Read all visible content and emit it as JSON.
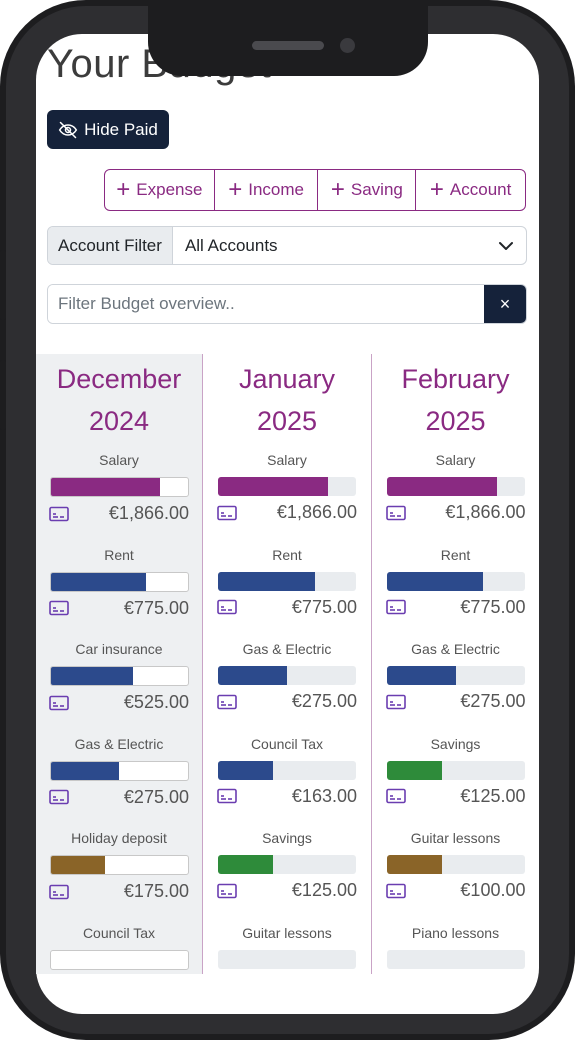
{
  "page": {
    "title": "Your Budget"
  },
  "toolbar": {
    "hide_paid_label": "Hide Paid",
    "hide_paid_icon": "eye-slash-icon"
  },
  "add_buttons": [
    {
      "label": "Expense",
      "icon": "plus-icon"
    },
    {
      "label": "Income",
      "icon": "plus-icon"
    },
    {
      "label": "Saving",
      "icon": "plus-icon"
    },
    {
      "label": "Account",
      "icon": "plus-icon"
    }
  ],
  "account_filter": {
    "label": "Account Filter",
    "selected": "All Accounts",
    "icon": "chevron-down-icon"
  },
  "search": {
    "placeholder": "Filter Budget overview..",
    "value": "",
    "clear_label": "×"
  },
  "colors": {
    "accent": "#8a2a82",
    "dark": "#15223a",
    "income": "#8a2a82",
    "expense": "#2c4a8c",
    "saving": "#2e8b3a",
    "lesson": "#8a6428"
  },
  "months": [
    {
      "month": "December",
      "year": "2024",
      "items": [
        {
          "name": "Salary",
          "amount": "€1,866.00",
          "progress": 0.8,
          "kind": "income"
        },
        {
          "name": "Rent",
          "amount": "€775.00",
          "progress": 0.7,
          "kind": "expense"
        },
        {
          "name": "Car insurance",
          "amount": "€525.00",
          "progress": 0.6,
          "kind": "expense"
        },
        {
          "name": "Gas & Electric",
          "amount": "€275.00",
          "progress": 0.5,
          "kind": "expense"
        },
        {
          "name": "Holiday deposit",
          "amount": "€175.00",
          "progress": 0.4,
          "kind": "lesson"
        },
        {
          "name": "Council Tax",
          "amount": "",
          "progress": 0,
          "kind": "expense"
        }
      ]
    },
    {
      "month": "January",
      "year": "2025",
      "items": [
        {
          "name": "Salary",
          "amount": "€1,866.00",
          "progress": 0.8,
          "kind": "income"
        },
        {
          "name": "Rent",
          "amount": "€775.00",
          "progress": 0.7,
          "kind": "expense"
        },
        {
          "name": "Gas & Electric",
          "amount": "€275.00",
          "progress": 0.5,
          "kind": "expense"
        },
        {
          "name": "Council Tax",
          "amount": "€163.00",
          "progress": 0.4,
          "kind": "expense"
        },
        {
          "name": "Savings",
          "amount": "€125.00",
          "progress": 0.4,
          "kind": "saving"
        },
        {
          "name": "Guitar lessons",
          "amount": "",
          "progress": 0,
          "kind": "lesson"
        }
      ]
    },
    {
      "month": "February",
      "year": "2025",
      "items": [
        {
          "name": "Salary",
          "amount": "€1,866.00",
          "progress": 0.8,
          "kind": "income"
        },
        {
          "name": "Rent",
          "amount": "€775.00",
          "progress": 0.7,
          "kind": "expense"
        },
        {
          "name": "Gas & Electric",
          "amount": "€275.00",
          "progress": 0.5,
          "kind": "expense"
        },
        {
          "name": "Savings",
          "amount": "€125.00",
          "progress": 0.4,
          "kind": "saving"
        },
        {
          "name": "Guitar lessons",
          "amount": "€100.00",
          "progress": 0.4,
          "kind": "lesson"
        },
        {
          "name": "Piano lessons",
          "amount": "",
          "progress": 0,
          "kind": "lesson"
        }
      ]
    }
  ]
}
